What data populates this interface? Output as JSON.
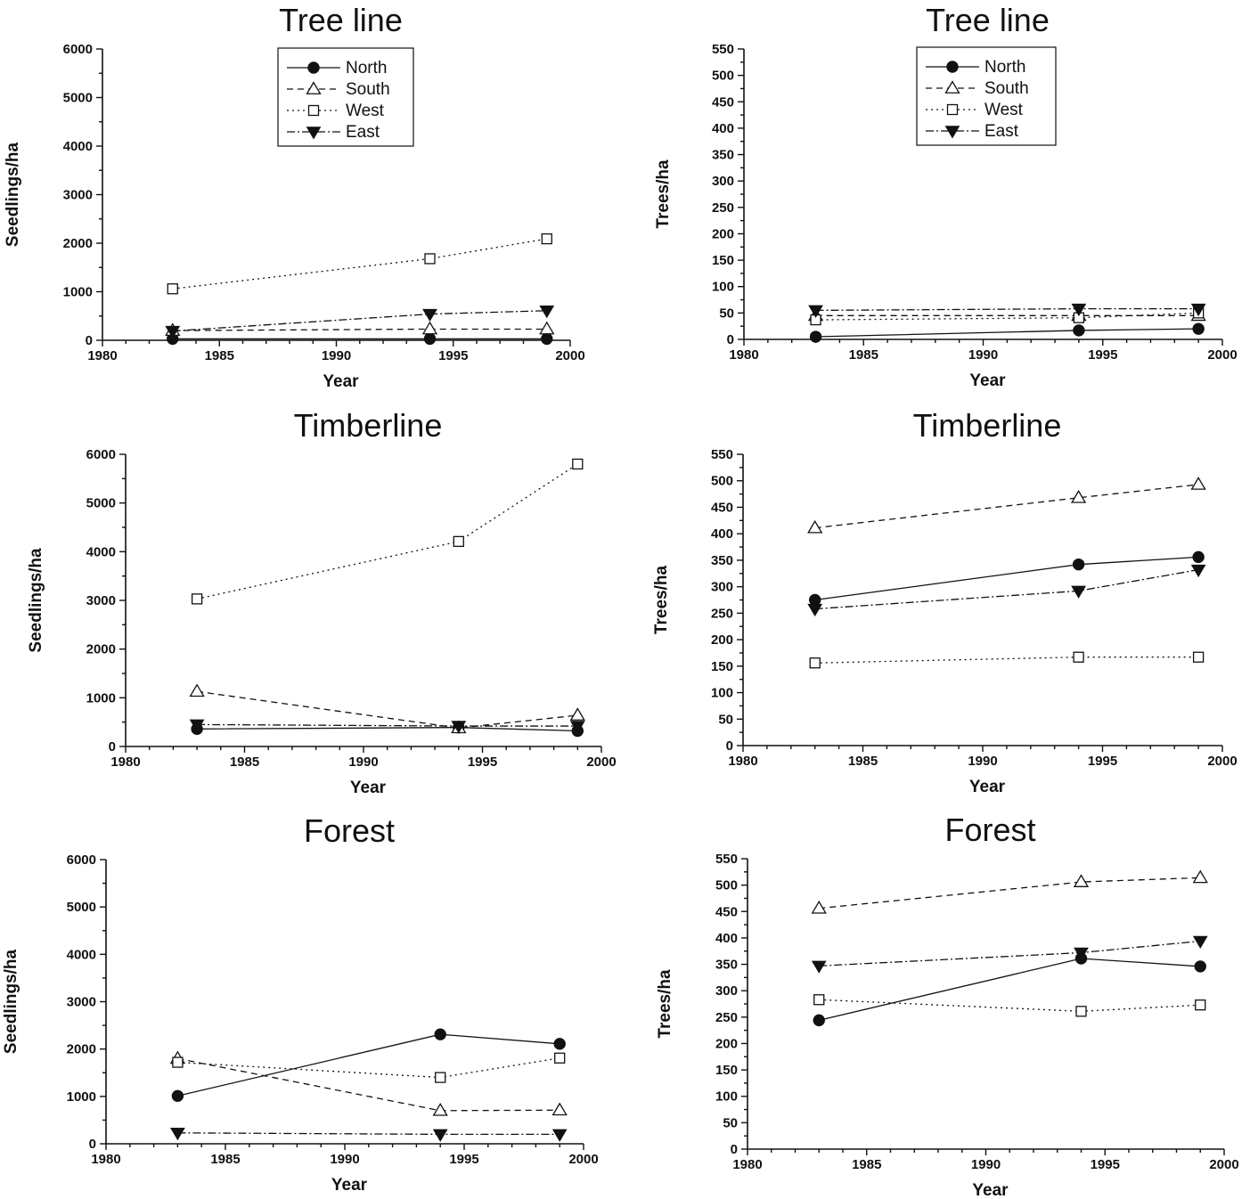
{
  "chart_data": [
    {
      "type": "line",
      "title": "Tree line",
      "xlabel": "Year",
      "ylabel": "Seedlings/ha",
      "xlim": [
        1980,
        2000
      ],
      "ylim": [
        0,
        6000
      ],
      "xticks": [
        1980,
        1985,
        1990,
        1995,
        2000
      ],
      "yticks": [
        0,
        1000,
        2000,
        3000,
        4000,
        5000,
        6000
      ],
      "x": [
        1983,
        1994,
        1999
      ],
      "legend": "top-center",
      "series": [
        {
          "name": "North",
          "values": [
            30,
            30,
            30
          ]
        },
        {
          "name": "South",
          "values": [
            200,
            230,
            230
          ]
        },
        {
          "name": "West",
          "values": [
            1060,
            1680,
            2090
          ]
        },
        {
          "name": "East",
          "values": [
            190,
            540,
            610
          ]
        }
      ]
    },
    {
      "type": "line",
      "title": "Tree line",
      "xlabel": "Year",
      "ylabel": "Trees/ha",
      "xlim": [
        1980,
        2000
      ],
      "ylim": [
        0,
        550
      ],
      "xticks": [
        1980,
        1985,
        1990,
        1995,
        2000
      ],
      "yticks": [
        0,
        50,
        100,
        150,
        200,
        250,
        300,
        350,
        400,
        450,
        500,
        550
      ],
      "x": [
        1983,
        1994,
        1999
      ],
      "legend": "top-center",
      "series": [
        {
          "name": "North",
          "values": [
            5,
            17,
            20
          ]
        },
        {
          "name": "South",
          "values": [
            45,
            45,
            45
          ]
        },
        {
          "name": "West",
          "values": [
            37,
            41,
            50
          ]
        },
        {
          "name": "East",
          "values": [
            55,
            58,
            58
          ]
        }
      ]
    },
    {
      "type": "line",
      "title": "Timberline",
      "xlabel": "Year",
      "ylabel": "Seedlings/ha",
      "xlim": [
        1980,
        2000
      ],
      "ylim": [
        0,
        6000
      ],
      "xticks": [
        1980,
        1985,
        1990,
        1995,
        2000
      ],
      "yticks": [
        0,
        1000,
        2000,
        3000,
        4000,
        5000,
        6000
      ],
      "x": [
        1983,
        1994,
        1999
      ],
      "series": [
        {
          "name": "North",
          "values": [
            360,
            390,
            320
          ]
        },
        {
          "name": "South",
          "values": [
            1130,
            380,
            640
          ]
        },
        {
          "name": "West",
          "values": [
            3030,
            4210,
            5800
          ]
        },
        {
          "name": "East",
          "values": [
            450,
            420,
            420
          ]
        }
      ]
    },
    {
      "type": "line",
      "title": "Timberline",
      "xlabel": "Year",
      "ylabel": "Trees/ha",
      "xlim": [
        1980,
        2000
      ],
      "ylim": [
        0,
        550
      ],
      "xticks": [
        1980,
        1985,
        1990,
        1995,
        2000
      ],
      "yticks": [
        0,
        50,
        100,
        150,
        200,
        250,
        300,
        350,
        400,
        450,
        500,
        550
      ],
      "x": [
        1983,
        1994,
        1999
      ],
      "series": [
        {
          "name": "North",
          "values": [
            275,
            342,
            356
          ]
        },
        {
          "name": "South",
          "values": [
            411,
            468,
            493
          ]
        },
        {
          "name": "West",
          "values": [
            156,
            167,
            167
          ]
        },
        {
          "name": "East",
          "values": [
            258,
            292,
            332
          ]
        }
      ]
    },
    {
      "type": "line",
      "title": "Forest",
      "xlabel": "Year",
      "ylabel": "Seedlings/ha",
      "xlim": [
        1980,
        2000
      ],
      "ylim": [
        0,
        6000
      ],
      "xticks": [
        1980,
        1985,
        1990,
        1995,
        2000
      ],
      "yticks": [
        0,
        1000,
        2000,
        3000,
        4000,
        5000,
        6000
      ],
      "x": [
        1983,
        1994,
        1999
      ],
      "series": [
        {
          "name": "North",
          "values": [
            1010,
            2310,
            2110
          ]
        },
        {
          "name": "South",
          "values": [
            1800,
            700,
            710
          ]
        },
        {
          "name": "West",
          "values": [
            1720,
            1400,
            1810
          ]
        },
        {
          "name": "East",
          "values": [
            230,
            200,
            200
          ]
        }
      ]
    },
    {
      "type": "line",
      "title": "Forest",
      "xlabel": "Year",
      "ylabel": "Trees/ha",
      "xlim": [
        1980,
        2000
      ],
      "ylim": [
        0,
        550
      ],
      "xticks": [
        1980,
        1985,
        1990,
        1995,
        2000
      ],
      "yticks": [
        0,
        50,
        100,
        150,
        200,
        250,
        300,
        350,
        400,
        450,
        500,
        550
      ],
      "x": [
        1983,
        1994,
        1999
      ],
      "series": [
        {
          "name": "North",
          "values": [
            244,
            361,
            346
          ]
        },
        {
          "name": "South",
          "values": [
            456,
            506,
            514
          ]
        },
        {
          "name": "West",
          "values": [
            283,
            261,
            273
          ]
        },
        {
          "name": "East",
          "values": [
            347,
            372,
            394
          ]
        }
      ]
    }
  ]
}
